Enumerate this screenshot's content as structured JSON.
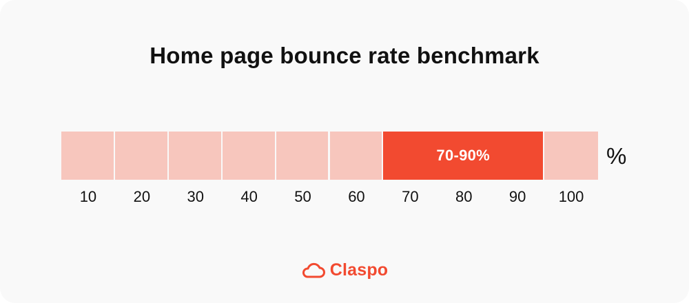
{
  "chart_data": {
    "type": "bar",
    "title": "Home page bounce rate benchmark",
    "tick_labels": [
      "10",
      "20",
      "30",
      "40",
      "50",
      "60",
      "70",
      "80",
      "90",
      "100"
    ],
    "unit": "%",
    "scale_range": [
      10,
      100
    ],
    "highlight": {
      "from": 70,
      "to": 90,
      "label": "70-90%"
    },
    "colors": {
      "segment": "#f7c6bd",
      "highlight": "#f24a30"
    }
  },
  "brand": {
    "name": "Claspo",
    "icon": "cloud-icon",
    "color": "#f24a30"
  }
}
